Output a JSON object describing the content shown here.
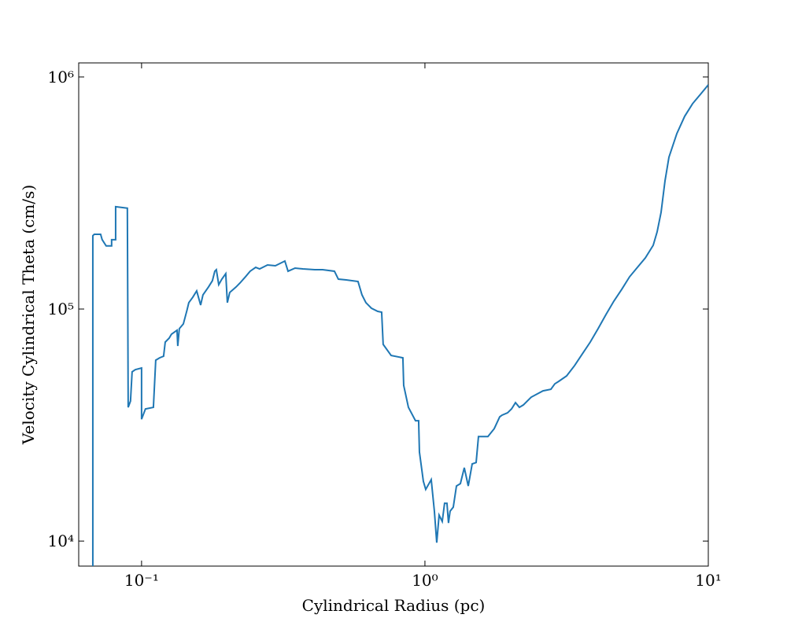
{
  "chart_data": {
    "type": "line",
    "x_label": "Cylindrical Radius  (pc)",
    "y_label": "Velocity Cylindrical Theta  (cm/s)",
    "log_x": true,
    "log_y": true,
    "xlim": [
      0.06,
      10
    ],
    "ylim": [
      7800,
      1150000
    ],
    "xticks": [
      {
        "value": 0.1,
        "label": "10⁻¹"
      },
      {
        "value": 1,
        "label": "10⁰"
      },
      {
        "value": 10,
        "label": "10¹"
      }
    ],
    "yticks": [
      {
        "value": 10000,
        "label": "10⁴"
      },
      {
        "value": 100000,
        "label": "10⁵"
      },
      {
        "value": 1000000,
        "label": "10⁶"
      }
    ],
    "color": "#1f77b4",
    "x": [
      0.0673,
      0.0673,
      0.0681,
      0.0717,
      0.0726,
      0.075,
      0.0784,
      0.0784,
      0.081,
      0.081,
      0.0891,
      0.0897,
      0.0914,
      0.0926,
      0.095,
      0.1,
      0.1,
      0.1032,
      0.1101,
      0.1122,
      0.1158,
      0.1196,
      0.1212,
      0.1251,
      0.1275,
      0.1334,
      0.1342,
      0.1359,
      0.1404,
      0.1445,
      0.1468,
      0.1516,
      0.1565,
      0.1616,
      0.1647,
      0.1722,
      0.1778,
      0.1813,
      0.1836,
      0.1872,
      0.192,
      0.1982,
      0.2008,
      0.2047,
      0.2154,
      0.2224,
      0.2326,
      0.2416,
      0.2528,
      0.261,
      0.2783,
      0.2966,
      0.3204,
      0.3288,
      0.3481,
      0.371,
      0.4085,
      0.4355,
      0.4793,
      0.4948,
      0.5275,
      0.5806,
      0.5995,
      0.619,
      0.6474,
      0.6813,
      0.7035,
      0.7122,
      0.7598,
      0.836,
      0.8414,
      0.8744,
      0.9262,
      0.9501,
      0.9563,
      0.9873,
      1.0064,
      1.0525,
      1.0798,
      1.1007,
      1.122,
      1.151,
      1.173,
      1.196,
      1.211,
      1.227,
      1.259,
      1.292,
      1.334,
      1.377,
      1.422,
      1.468,
      1.516,
      1.545,
      1.668,
      1.756,
      1.836,
      1.872,
      1.957,
      2.021,
      2.087,
      2.154,
      2.225,
      2.371,
      2.61,
      2.783,
      2.873,
      2.967,
      3.162,
      3.372,
      3.594,
      3.831,
      4.084,
      4.355,
      4.642,
      4.948,
      5.275,
      5.623,
      5.995,
      6.39,
      6.598,
      6.813,
      7.035,
      7.263,
      7.743,
      8.254,
      8.799,
      9.38,
      10
    ],
    "values": [
      7800,
      207000,
      210000,
      210000,
      199000,
      187000,
      187000,
      199000,
      199000,
      276000,
      272000,
      37700,
      40100,
      53600,
      54800,
      55700,
      33500,
      37100,
      37700,
      60200,
      61600,
      62600,
      72000,
      74900,
      77900,
      81000,
      69300,
      82300,
      86200,
      98400,
      106500,
      112400,
      119700,
      104000,
      115100,
      124400,
      132400,
      145500,
      147800,
      127400,
      134500,
      142100,
      106500,
      117800,
      124400,
      129400,
      137700,
      145500,
      151200,
      148900,
      154800,
      153600,
      161000,
      145500,
      150100,
      148900,
      147800,
      147800,
      145500,
      134500,
      133500,
      131400,
      115100,
      106500,
      100800,
      97700,
      96900,
      70400,
      63100,
      61600,
      46900,
      37700,
      33000,
      33000,
      24200,
      18100,
      16700,
      18400,
      13450,
      9840,
      12940,
      12150,
      14550,
      14550,
      11970,
      13450,
      14000,
      17270,
      17690,
      20700,
      17270,
      21500,
      21800,
      28200,
      28200,
      30500,
      34300,
      34900,
      35700,
      37100,
      39500,
      37700,
      38600,
      41700,
      44400,
      45100,
      47600,
      48800,
      51500,
      57000,
      64100,
      72000,
      82300,
      94700,
      108100,
      121500,
      137700,
      151200,
      166100,
      188200,
      215000,
      261000,
      357000,
      451000,
      570000,
      677000,
      767000,
      842000,
      925000
    ]
  }
}
